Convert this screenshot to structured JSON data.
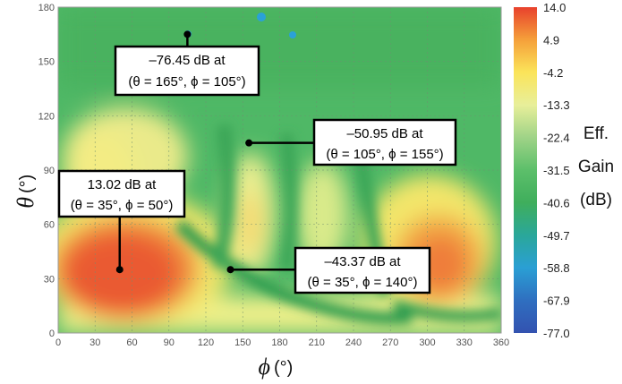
{
  "chart_data": {
    "type": "heatmap",
    "x_axis": {
      "symbol": "ϕ",
      "unit": "(°)",
      "ticks": [
        0,
        30,
        60,
        90,
        120,
        150,
        180,
        210,
        240,
        270,
        300,
        330,
        360
      ],
      "range": [
        0,
        360
      ]
    },
    "y_axis": {
      "symbol": "θ",
      "unit": "(°)",
      "ticks": [
        0,
        30,
        60,
        90,
        120,
        150,
        180
      ],
      "range": [
        0,
        180
      ]
    },
    "colorbar": {
      "label_lines": [
        "Eff.",
        "Gain",
        "(dB)"
      ],
      "ticks": [
        "14.0",
        "4.9",
        "-4.2",
        "-13.3",
        "-22.4",
        "-31.5",
        "-40.6",
        "-49.7",
        "-58.8",
        "-67.9",
        "-77.0"
      ],
      "range": [
        -77.0,
        14.0
      ],
      "colors": [
        "#e8412c",
        "#f5a03a",
        "#fbe45a",
        "#e8ef9a",
        "#9fd387",
        "#5cbf6a",
        "#3fae5c",
        "#2aa79a",
        "#2a9fd4",
        "#2f6fc0",
        "#3352b0"
      ]
    },
    "grid": true,
    "regions": [
      {
        "phi": [
          0,
          120
        ],
        "theta": [
          0,
          75
        ],
        "level": "high"
      },
      {
        "phi": [
          270,
          345
        ],
        "theta": [
          15,
          95
        ],
        "level": "high"
      },
      {
        "phi": [
          0,
          360
        ],
        "theta": [
          0,
          20
        ],
        "level": "medium"
      },
      {
        "phi": [
          10,
          110
        ],
        "theta": [
          95,
          140
        ],
        "level": "medium"
      },
      {
        "phi": [
          140,
          175
        ],
        "theta": [
          45,
          110
        ],
        "level": "medium"
      },
      {
        "phi": [
          0,
          360
        ],
        "theta": [
          120,
          180
        ],
        "level": "low"
      }
    ],
    "annotations": [
      {
        "lines": [
          "–76.45 dB at",
          "(θ = 165°, ϕ = 105°)"
        ],
        "theta": 165,
        "phi": 105,
        "value_db": -76.45
      },
      {
        "lines": [
          "–50.95 dB at",
          "(θ = 105°, ϕ = 155°)"
        ],
        "theta": 105,
        "phi": 155,
        "value_db": -50.95
      },
      {
        "lines": [
          "13.02 dB at",
          "(θ = 35°, ϕ = 50°)"
        ],
        "theta": 35,
        "phi": 50,
        "value_db": 13.02
      },
      {
        "lines": [
          "–43.37 dB at",
          "(θ = 35°, ϕ = 140°)"
        ],
        "theta": 35,
        "phi": 140,
        "value_db": -43.37
      }
    ]
  }
}
